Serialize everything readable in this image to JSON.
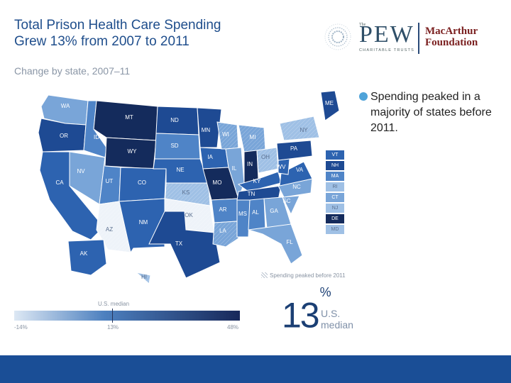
{
  "title_line1": "Total Prison Health Care Spending",
  "title_line2": "Grew 13% from 2007 to 2011",
  "subtitle": "Change by state, 2007–11",
  "logos": {
    "pew_small": "The",
    "pew": "PEW",
    "pew_sub": "CHARITABLE TRUSTS",
    "mac_line1": "MacArthur",
    "mac_line2": "Foundation"
  },
  "bullet": "Spending peaked in a majority of states before 2011.",
  "legend": {
    "peaked_note": "Spending peaked before 2011",
    "median_label": "U.S. median",
    "min_label": "-14%",
    "median_value": "13%",
    "max_label": "48%"
  },
  "big_number": "13",
  "big_number_suffix": "%",
  "big_caption_1": "U.S.",
  "big_caption_2": "median",
  "colors": {
    "title": "#1f4e8c",
    "footer": "#1a4e96",
    "shades": [
      "#eef3f9",
      "#9fc0e5",
      "#79a5d8",
      "#4f84c7",
      "#2d63b0",
      "#1e4a93",
      "#142b5c"
    ]
  },
  "states": [
    {
      "abbr": "WA",
      "shade": 2
    },
    {
      "abbr": "OR",
      "shade": 5
    },
    {
      "abbr": "CA",
      "shade": 4
    },
    {
      "abbr": "ID",
      "shade": 3
    },
    {
      "abbr": "NV",
      "shade": 2
    },
    {
      "abbr": "MT",
      "shade": 6
    },
    {
      "abbr": "WY",
      "shade": 6
    },
    {
      "abbr": "UT",
      "shade": 3
    },
    {
      "abbr": "AZ",
      "shade": 0
    },
    {
      "abbr": "CO",
      "shade": 4
    },
    {
      "abbr": "NM",
      "shade": 4
    },
    {
      "abbr": "ND",
      "shade": 5
    },
    {
      "abbr": "SD",
      "shade": 3
    },
    {
      "abbr": "NE",
      "shade": 4
    },
    {
      "abbr": "KS",
      "shade": 1
    },
    {
      "abbr": "OK",
      "shade": 0
    },
    {
      "abbr": "TX",
      "shade": 5
    },
    {
      "abbr": "MN",
      "shade": 5
    },
    {
      "abbr": "IA",
      "shade": 4
    },
    {
      "abbr": "MO",
      "shade": 6
    },
    {
      "abbr": "AR",
      "shade": 3
    },
    {
      "abbr": "LA",
      "shade": 2
    },
    {
      "abbr": "WI",
      "shade": 2
    },
    {
      "abbr": "IL",
      "shade": 2
    },
    {
      "abbr": "MI",
      "shade": 2
    },
    {
      "abbr": "IN",
      "shade": 6
    },
    {
      "abbr": "OH",
      "shade": 1
    },
    {
      "abbr": "KY",
      "shade": 4
    },
    {
      "abbr": "TN",
      "shade": 5
    },
    {
      "abbr": "MS",
      "shade": 3
    },
    {
      "abbr": "AL",
      "shade": 3
    },
    {
      "abbr": "GA",
      "shade": 2
    },
    {
      "abbr": "FL",
      "shade": 2
    },
    {
      "abbr": "SC",
      "shade": 2
    },
    {
      "abbr": "NC",
      "shade": 2
    },
    {
      "abbr": "VA",
      "shade": 4
    },
    {
      "abbr": "WV",
      "shade": 4
    },
    {
      "abbr": "PA",
      "shade": 5
    },
    {
      "abbr": "NY",
      "shade": 1
    },
    {
      "abbr": "ME",
      "shade": 5
    },
    {
      "abbr": "AK",
      "shade": 4
    },
    {
      "abbr": "HI",
      "shade": 1
    }
  ],
  "small_states": [
    {
      "abbr": "VT",
      "shade": 4
    },
    {
      "abbr": "NH",
      "shade": 5
    },
    {
      "abbr": "MA",
      "shade": 3
    },
    {
      "abbr": "RI",
      "shade": 1
    },
    {
      "abbr": "CT",
      "shade": 2
    },
    {
      "abbr": "NJ",
      "shade": 1
    },
    {
      "abbr": "DE",
      "shade": 6
    },
    {
      "abbr": "MD",
      "shade": 1
    }
  ]
}
